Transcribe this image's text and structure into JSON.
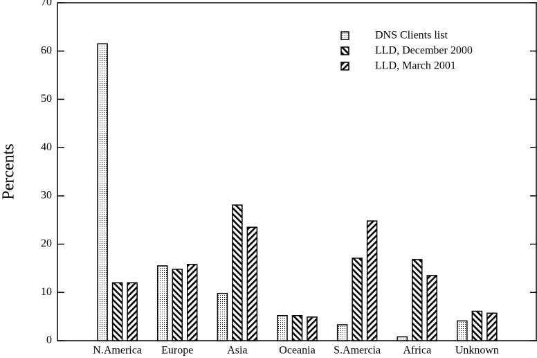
{
  "chart_data": {
    "type": "bar",
    "ylabel": "Percents",
    "categories": [
      "N.America",
      "Europe",
      "Asia",
      "Oceania",
      "S.Amercia",
      "Africa",
      "Unknown"
    ],
    "series": [
      {
        "name": "DNS Clients list",
        "pattern": "dots",
        "color": "#000000",
        "values": [
          61.5,
          15.5,
          9.8,
          5.2,
          3.3,
          0.8,
          4.1
        ]
      },
      {
        "name": "LLD, December 2000",
        "pattern": "back-diagonal",
        "color": "#000000",
        "values": [
          12,
          14.8,
          28.1,
          5.2,
          17.1,
          16.8,
          6.1
        ]
      },
      {
        "name": "LLD, March 2001",
        "pattern": "diagonal",
        "color": "#000000",
        "values": [
          12,
          15.8,
          23.5,
          4.9,
          24.8,
          13.5,
          5.7
        ]
      }
    ],
    "ylim": [
      0,
      70
    ],
    "yticks": [
      0,
      10,
      20,
      30,
      40,
      50,
      60,
      70
    ],
    "grid": false,
    "legend": "top-right"
  }
}
